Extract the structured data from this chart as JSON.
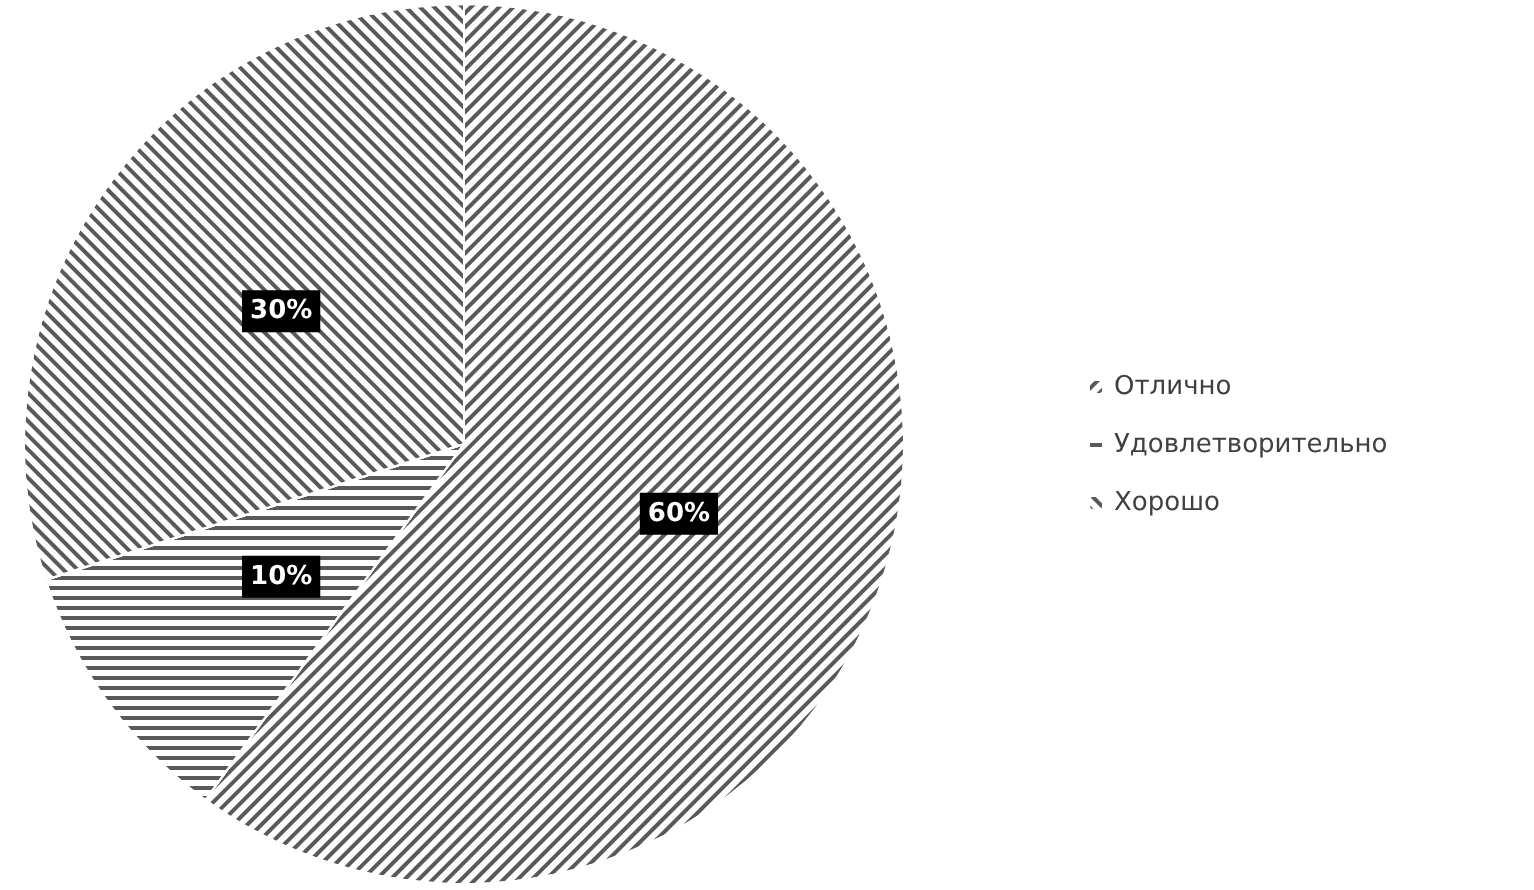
{
  "chart_data": {
    "type": "pie",
    "categories": [
      "Отлично",
      "Удовлетворительно",
      "Хорошо"
    ],
    "values": [
      60,
      10,
      30
    ],
    "value_labels": [
      "60%",
      "10%",
      "30%"
    ],
    "colors": [
      "#595959",
      "#595959",
      "#595959"
    ],
    "legend": "right"
  }
}
